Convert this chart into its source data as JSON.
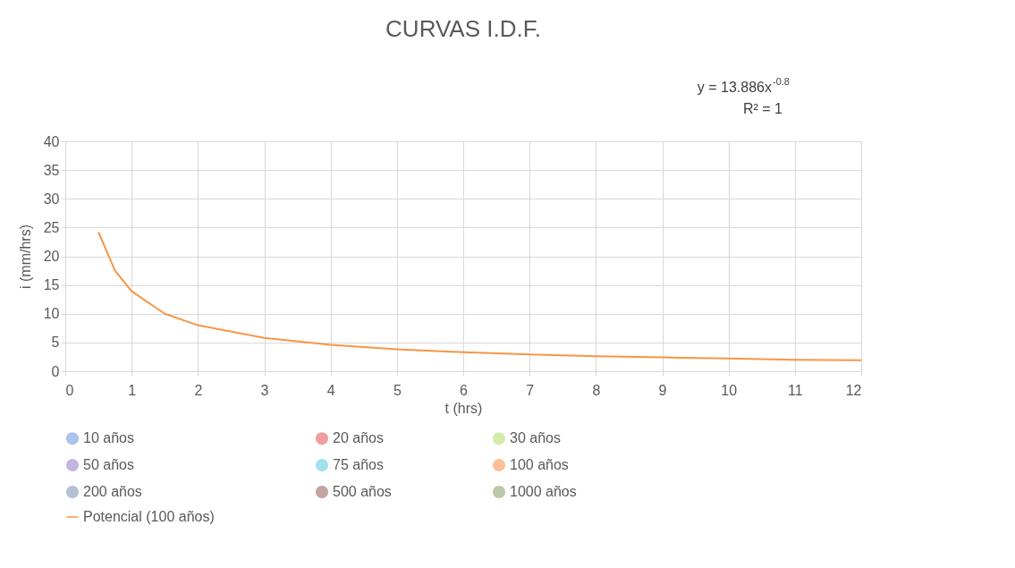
{
  "chart_data": {
    "type": "scatter",
    "title": "CURVAS I.D.F.",
    "xlabel": "t (hrs)",
    "ylabel": "i (mm/hrs)",
    "annotations": [
      "y = 13.886x$^{-0.8}$",
      "R² = 1"
    ],
    "xlim": [
      0,
      12
    ],
    "xticks": [
      {
        "value": 0,
        "label": "0"
      },
      {
        "value": 1,
        "label": "1"
      },
      {
        "value": 2,
        "label": "2"
      },
      {
        "value": 3,
        "label": "3"
      },
      {
        "value": 4,
        "label": "4"
      },
      {
        "value": 5,
        "label": "5"
      },
      {
        "value": 6,
        "label": "6"
      },
      {
        "value": 7,
        "label": "7"
      },
      {
        "value": 8,
        "label": "8"
      },
      {
        "value": 9,
        "label": "9"
      },
      {
        "value": 10,
        "label": "10"
      },
      {
        "value": 11,
        "label": "11"
      },
      {
        "value": 12,
        "label": "12"
      }
    ],
    "ylim": [
      0,
      40
    ],
    "yticks": [
      0,
      5,
      10,
      15,
      20,
      25,
      30,
      35,
      40
    ],
    "grid": true,
    "legend": "bottom",
    "series": [
      {
        "name": "10 años",
        "color": "#a9c4ef",
        "marker": "circle"
      },
      {
        "name": "20 años",
        "color": "#ef9f9f",
        "marker": "circle"
      },
      {
        "name": "30 años",
        "color": "#d3ecab",
        "marker": "circle"
      },
      {
        "name": "50 años",
        "color": "#c6b4e0",
        "marker": "circle"
      },
      {
        "name": "75 años",
        "color": "#a2e1ec",
        "marker": "circle"
      },
      {
        "name": "100 años",
        "color": "#fbc095",
        "marker": "circle"
      },
      {
        "name": "200 años",
        "color": "#b4c0d4",
        "marker": "circle"
      },
      {
        "name": "500 años",
        "color": "#c4a3a3",
        "marker": "circle"
      },
      {
        "name": "1000 años",
        "color": "#bcc7a8",
        "marker": "circle"
      },
      {
        "name": "Potencial (100 años)",
        "type": "line",
        "color": "#f79646",
        "marker": "none",
        "x": [
          0.5,
          0.75,
          1,
          1.5,
          2,
          3,
          4,
          5,
          6,
          7,
          8,
          9,
          10,
          11,
          12
        ],
        "values": [
          24.2,
          17.5,
          13.9,
          10.0,
          8.0,
          5.8,
          4.6,
          3.8,
          3.3,
          2.9,
          2.6,
          2.4,
          2.2,
          2.0,
          1.9
        ]
      }
    ]
  }
}
